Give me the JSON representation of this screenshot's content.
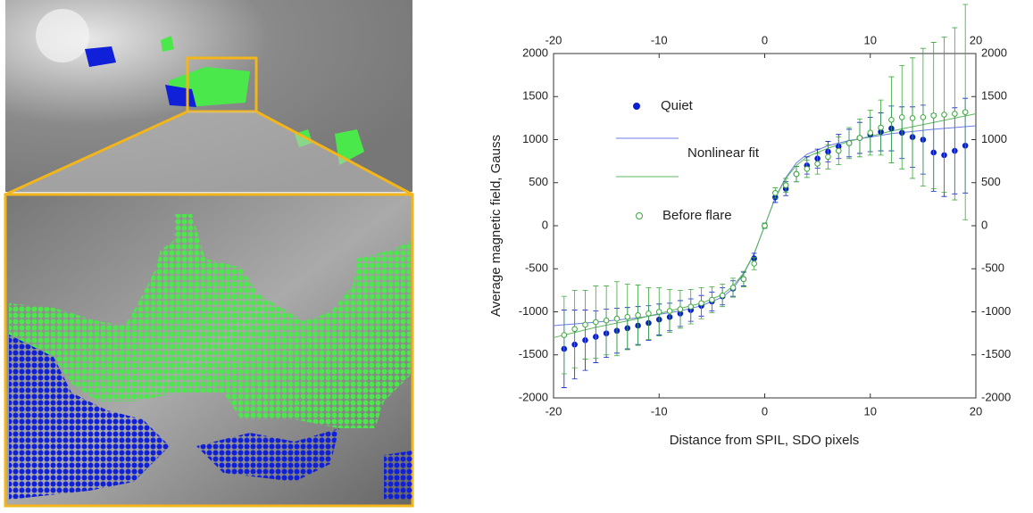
{
  "chart_data": {
    "type": "scatter",
    "xlabel": "Distance from SPIL, SDO pixels",
    "ylabel": "Average magnetic field, Gauss",
    "xlim": [
      -20,
      20
    ],
    "xticks": [
      -20,
      -10,
      0,
      10,
      20
    ],
    "ylim": [
      -2000,
      2000
    ],
    "yticks": [
      -2000,
      -1500,
      -1000,
      -500,
      0,
      500,
      1000,
      1500,
      2000
    ],
    "x": [
      -19,
      -18,
      -17,
      -16,
      -15,
      -14,
      -13,
      -12,
      -11,
      -10,
      -9,
      -8,
      -7,
      -6,
      -5,
      -4,
      -3,
      -2,
      -1,
      0,
      1,
      2,
      3,
      4,
      5,
      6,
      7,
      8,
      9,
      10,
      11,
      12,
      13,
      14,
      15,
      16,
      17,
      18,
      19
    ],
    "series": [
      {
        "name": "Quiet",
        "color": "#0a1fd0",
        "marker": "filled",
        "values": [
          -1430,
          -1380,
          -1330,
          -1290,
          -1250,
          -1220,
          -1190,
          -1160,
          -1130,
          -1090,
          -1060,
          -1020,
          -980,
          -930,
          -880,
          -820,
          -730,
          -620,
          -380,
          0,
          330,
          430,
          600,
          700,
          780,
          860,
          920,
          960,
          1020,
          1060,
          1090,
          1130,
          1080,
          1030,
          1000,
          850,
          820,
          870,
          930
        ],
        "errors": [
          450,
          400,
          350,
          300,
          280,
          260,
          240,
          220,
          200,
          180,
          160,
          150,
          130,
          120,
          110,
          100,
          90,
          80,
          60,
          30,
          60,
          80,
          90,
          100,
          110,
          120,
          140,
          160,
          180,
          200,
          220,
          260,
          300,
          350,
          400,
          450,
          480,
          500,
          550
        ]
      },
      {
        "name": "Before flare",
        "color": "#3aa83a",
        "marker": "open",
        "values": [
          -1270,
          -1200,
          -1150,
          -1120,
          -1100,
          -1080,
          -1060,
          -1040,
          -1020,
          -1000,
          -990,
          -970,
          -940,
          -900,
          -860,
          -810,
          -720,
          -620,
          -440,
          0,
          380,
          470,
          600,
          660,
          720,
          800,
          870,
          960,
          1020,
          1080,
          1140,
          1230,
          1260,
          1250,
          1260,
          1280,
          1290,
          1300,
          1320
        ],
        "errors": [
          450,
          450,
          400,
          420,
          400,
          430,
          380,
          350,
          300,
          280,
          250,
          220,
          200,
          180,
          150,
          130,
          110,
          90,
          70,
          30,
          60,
          80,
          90,
          100,
          120,
          140,
          160,
          180,
          220,
          260,
          320,
          500,
          600,
          700,
          800,
          850,
          900,
          1000,
          1250
        ]
      }
    ],
    "fits": {
      "name": "Nonlinear fit",
      "x": [
        -20,
        -16,
        -12,
        -8,
        -6,
        -4,
        -3,
        -2,
        -1,
        0,
        1,
        2,
        3,
        4,
        6,
        8,
        12,
        16,
        20
      ],
      "series": [
        {
          "color": "#6a7ce8",
          "values": [
            -1160,
            -1120,
            -1070,
            -990,
            -930,
            -830,
            -730,
            -560,
            -330,
            0,
            330,
            560,
            730,
            830,
            930,
            990,
            1070,
            1120,
            1160
          ]
        },
        {
          "color": "#5cb85c",
          "values": [
            -1300,
            -1180,
            -1080,
            -960,
            -900,
            -800,
            -700,
            -550,
            -320,
            0,
            320,
            550,
            700,
            800,
            900,
            980,
            1100,
            1200,
            1300
          ]
        }
      ]
    }
  }
}
